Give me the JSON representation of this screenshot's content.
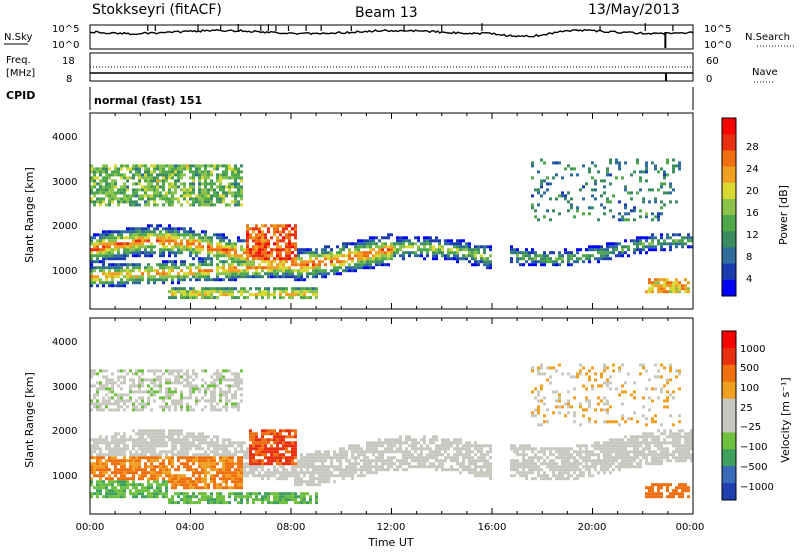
{
  "header": {
    "station": "Stokkseyri (fitACF)",
    "beam": "Beam 13",
    "date": "13/May/2013"
  },
  "top_panel": {
    "left_label": "N.Sky",
    "right_label": "N.Search",
    "left_ticks": [
      "10^5",
      "10^0"
    ],
    "right_ticks": [
      "10^5",
      "10^0"
    ]
  },
  "freq_panel": {
    "left_label_1": "Freq.",
    "left_label_2": "[MHz]",
    "left_ticks": [
      "18",
      "8"
    ],
    "right_label": "Nave",
    "right_ticks": [
      "60",
      "0"
    ]
  },
  "cpid": {
    "label": "CPID",
    "value": "normal (fast) 151"
  },
  "chart_data": [
    {
      "type": "heatmap",
      "name": "Power",
      "ylabel": "Slant Range [km]",
      "xlabel": "",
      "yticks": [
        "4000",
        "3000",
        "2000",
        "1000"
      ],
      "ylim": [
        180,
        4600
      ],
      "xlim": [
        0,
        24
      ],
      "colorbar": {
        "label": "Power [dB]",
        "ticks": [
          "28",
          "24",
          "20",
          "16",
          "12",
          "8",
          "4"
        ],
        "colors": [
          "#0000ff",
          "#1a3cb0",
          "#2e6c9c",
          "#3b8c60",
          "#4ea84a",
          "#8ac24a",
          "#d8d830",
          "#f0a020",
          "#f07010",
          "#e83010",
          "#ff0000"
        ]
      }
    },
    {
      "type": "heatmap",
      "name": "Velocity",
      "ylabel": "Slant Range [km]",
      "xlabel": "Time UT",
      "yticks": [
        "4000",
        "3000",
        "2000",
        "1000"
      ],
      "xticks": [
        "00:00",
        "04:00",
        "08:00",
        "12:00",
        "16:00",
        "20:00",
        "00:00"
      ],
      "ylim": [
        180,
        4600
      ],
      "xlim": [
        0,
        24
      ],
      "colorbar": {
        "label": "Velocity [m s⁻¹]",
        "ticks": [
          "1000",
          "500",
          "100",
          "25",
          "−25",
          "−100",
          "−500",
          "−1000"
        ],
        "colors": [
          "#2040b0",
          "#3a6ab8",
          "#40a060",
          "#70c040",
          "#c8c8c0",
          "#c8c8c0",
          "#f0a020",
          "#f07010",
          "#e83010",
          "#ff0000"
        ]
      }
    }
  ]
}
